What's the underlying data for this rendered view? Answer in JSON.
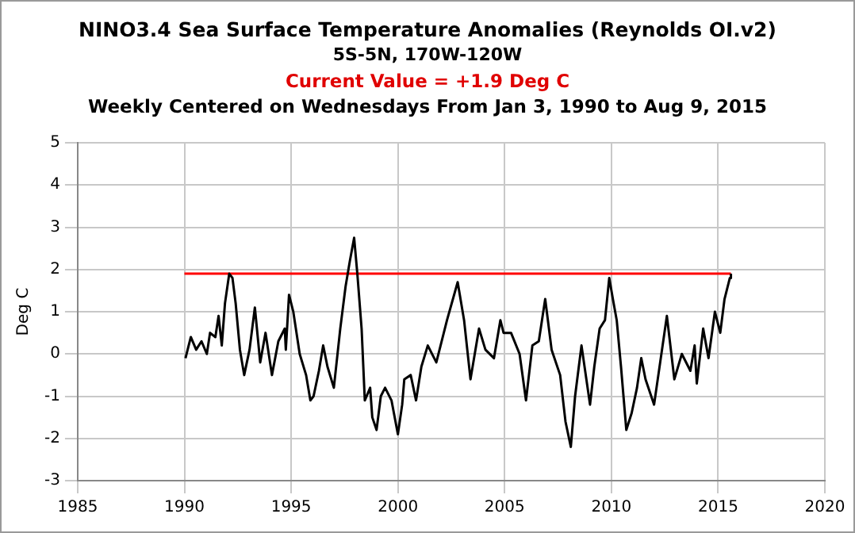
{
  "chart_data": {
    "type": "line",
    "title": "NINO3.4 Sea Surface Temperature Anomalies (Reynolds OI.v2)",
    "subtitle": "5S-5N, 170W-120W",
    "annotations": [
      "Current Value = +1.9 Deg C",
      "Weekly Centered on Wednesdays From Jan 3, 1990 to Aug 9, 2015"
    ],
    "ylabel": "Deg C",
    "xlim": [
      1985,
      2020
    ],
    "xticks": [
      1985,
      1990,
      1995,
      2000,
      2005,
      2010,
      2015,
      2020
    ],
    "ylim": [
      -3,
      5
    ],
    "yticks": [
      -3,
      -2,
      -1,
      0,
      1,
      2,
      3,
      4,
      5
    ],
    "grid": true,
    "legend": false,
    "marker": "none",
    "line_style": "solid",
    "series": [
      {
        "color": "#000000",
        "x": [
          1990.05,
          1990.3,
          1990.55,
          1990.8,
          1991.05,
          1991.2,
          1991.45,
          1991.6,
          1991.75,
          1991.9,
          1992.1,
          1992.25,
          1992.4,
          1992.6,
          1992.8,
          1993.05,
          1993.3,
          1993.55,
          1993.8,
          1994.1,
          1994.4,
          1994.7,
          1994.75,
          1994.9,
          1995.1,
          1995.4,
          1995.7,
          1995.9,
          1996.05,
          1996.3,
          1996.5,
          1996.7,
          1997.0,
          1997.3,
          1997.55,
          1997.75,
          1997.95,
          1998.1,
          1998.3,
          1998.45,
          1998.7,
          1998.8,
          1999.0,
          1999.2,
          1999.4,
          1999.7,
          2000.0,
          2000.2,
          2000.3,
          2000.6,
          2000.85,
          2001.1,
          2001.4,
          2001.8,
          2002.3,
          2002.8,
          2003.1,
          2003.4,
          2003.6,
          2003.8,
          2004.1,
          2004.5,
          2004.8,
          2004.95,
          2005.3,
          2005.7,
          2006.0,
          2006.3,
          2006.6,
          2006.9,
          2007.2,
          2007.6,
          2007.85,
          2008.1,
          2008.3,
          2008.6,
          2009.0,
          2009.2,
          2009.45,
          2009.7,
          2009.9,
          2010.07,
          2010.25,
          2010.45,
          2010.7,
          2010.95,
          2011.2,
          2011.4,
          2011.6,
          2012.0,
          2012.2,
          2012.6,
          2012.95,
          2013.3,
          2013.7,
          2013.9,
          2014.0,
          2014.3,
          2014.55,
          2014.85,
          2015.1,
          2015.3,
          2015.55,
          2015.6
        ],
        "values": [
          -0.1,
          0.4,
          0.1,
          0.3,
          0.0,
          0.5,
          0.4,
          0.9,
          0.2,
          1.2,
          1.9,
          1.8,
          1.2,
          0.1,
          -0.5,
          0.1,
          1.1,
          -0.2,
          0.5,
          -0.5,
          0.3,
          0.6,
          0.1,
          1.4,
          1.0,
          0.0,
          -0.5,
          -1.1,
          -1.0,
          -0.4,
          0.2,
          -0.3,
          -0.8,
          0.6,
          1.6,
          2.2,
          2.75,
          1.9,
          0.6,
          -1.1,
          -0.8,
          -1.5,
          -1.8,
          -1.0,
          -0.8,
          -1.1,
          -1.9,
          -1.2,
          -0.6,
          -0.5,
          -1.1,
          -0.3,
          0.2,
          -0.2,
          0.8,
          1.7,
          0.8,
          -0.6,
          0.0,
          0.6,
          0.1,
          -0.1,
          0.8,
          0.5,
          0.5,
          0.0,
          -1.1,
          0.2,
          0.3,
          1.3,
          0.1,
          -0.5,
          -1.6,
          -2.2,
          -1.0,
          0.2,
          -1.2,
          -0.3,
          0.6,
          0.8,
          1.8,
          1.3,
          0.8,
          -0.3,
          -1.8,
          -1.4,
          -0.8,
          -0.1,
          -0.6,
          -1.2,
          -0.5,
          0.9,
          -0.6,
          0.0,
          -0.4,
          0.2,
          -0.7,
          0.6,
          -0.1,
          1.0,
          0.5,
          1.3,
          1.8,
          1.9
        ]
      },
      {
        "type": "line",
        "color": "#ff0000",
        "x": [
          1990,
          2015.6
        ],
        "values": [
          1.9,
          1.9
        ]
      }
    ]
  }
}
